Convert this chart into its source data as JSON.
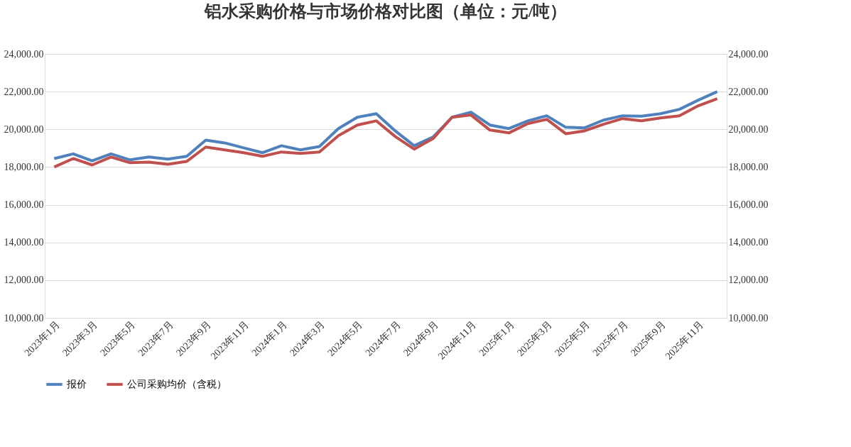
{
  "chart_data": {
    "type": "line",
    "title": "铝水采购价格与市场价格对比图（单位：元/吨）",
    "categories": [
      "2023年1月",
      null,
      "2023年3月",
      null,
      "2023年5月",
      null,
      "2023年7月",
      null,
      "2023年9月",
      null,
      "2023年11月",
      null,
      "2024年1月",
      null,
      "2024年3月",
      null,
      "2024年5月",
      null,
      "2024年7月",
      null,
      "2024年9月",
      null,
      "2024年11月",
      null,
      "2025年1月",
      null,
      "2025年3月",
      null,
      "2025年5月",
      null,
      "2025年7月",
      null,
      "2025年9月",
      null,
      "2025年11月",
      null
    ],
    "series": [
      {
        "name": "报价",
        "color": "#4f81bd",
        "values": [
          18450,
          18700,
          18330,
          18700,
          18380,
          18530,
          18420,
          18570,
          19430,
          19280,
          19020,
          18760,
          19130,
          18910,
          19090,
          20040,
          20640,
          20830,
          19920,
          19130,
          19590,
          20640,
          20910,
          20230,
          20040,
          20450,
          20720,
          20110,
          20080,
          20490,
          20720,
          20700,
          20830,
          21060,
          21550,
          22000
        ]
      },
      {
        "name": "公司采购均价（含税）",
        "color": "#c0504d",
        "values": [
          18000,
          18450,
          18110,
          18530,
          18230,
          18260,
          18150,
          18300,
          19060,
          18910,
          18760,
          18570,
          18800,
          18720,
          18800,
          19660,
          20230,
          20450,
          19620,
          18950,
          19510,
          20640,
          20760,
          19960,
          19810,
          20300,
          20530,
          19770,
          19920,
          20270,
          20570,
          20450,
          20600,
          20720,
          21250,
          21620
        ]
      }
    ],
    "ylim": [
      10000,
      24000
    ],
    "yticks": [
      {
        "value": 10000,
        "label": "10,000.00"
      },
      {
        "value": 12000,
        "label": "12,000.00"
      },
      {
        "value": 14000,
        "label": "14,000.00"
      },
      {
        "value": 16000,
        "label": "16,000.00"
      },
      {
        "value": 18000,
        "label": "18,000.00"
      },
      {
        "value": 20000,
        "label": "20,000.00"
      },
      {
        "value": 22000,
        "label": "22,000.00"
      },
      {
        "value": 24000,
        "label": "24,000.00"
      }
    ],
    "y2lim": [
      10000,
      24000
    ],
    "y2ticks": [
      {
        "value": 10000,
        "label": "10,000.00"
      },
      {
        "value": 12000,
        "label": "12,000.00"
      },
      {
        "value": 14000,
        "label": "14,000.00"
      },
      {
        "value": 16000,
        "label": "16,000.00"
      },
      {
        "value": 18000,
        "label": "18,000.00"
      },
      {
        "value": 20000,
        "label": "20,000.00"
      },
      {
        "value": 22000,
        "label": "22,000.00"
      },
      {
        "value": 24000,
        "label": "24,000.00"
      }
    ],
    "grid": "y",
    "legend": "bottom",
    "marker": "none",
    "line_style": "solid"
  }
}
